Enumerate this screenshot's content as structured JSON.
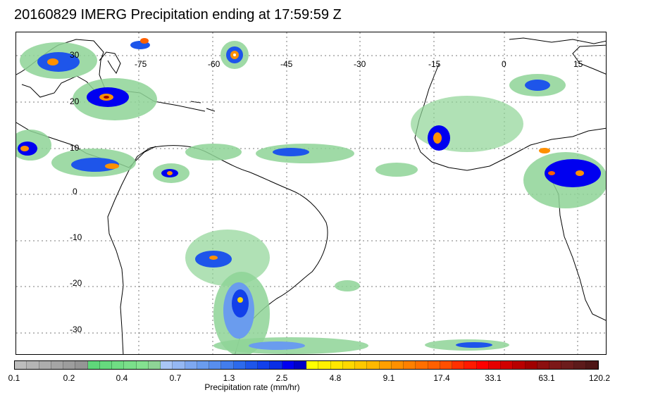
{
  "title": "20160829 IMERG Precipitation ending at 17:59:59 Z",
  "map": {
    "lon_labels": [
      "-75",
      "-60",
      "-45",
      "-30",
      "-15",
      "0",
      "15"
    ],
    "lat_labels": [
      "30",
      "20",
      "10",
      "0",
      "-10",
      "-20",
      "-30"
    ],
    "grid": "dotted"
  },
  "colorbar": {
    "title": "Precipitation rate (mm/hr)",
    "tick_labels": [
      "0.1",
      "0.2",
      "0.4",
      "0.7",
      "1.3",
      "2.5",
      "4.8",
      "9.1",
      "17.4",
      "33.1",
      "63.1",
      "120.2"
    ],
    "colors": [
      "#bdbdbd",
      "#b5b5b5",
      "#adadad",
      "#a5a5a5",
      "#9d9d9d",
      "#959595",
      "#5fd67a",
      "#66da7e",
      "#70dd84",
      "#7adf8a",
      "#84e190",
      "#8ed496",
      "#a9c6f5",
      "#95b8f3",
      "#7ea8f0",
      "#6a9cee",
      "#588eee",
      "#437dec",
      "#2d6aec",
      "#1e55ea",
      "#1240ea",
      "#0a2ee6",
      "#0000f0",
      "#0000c8",
      "#ffff00",
      "#fff000",
      "#ffe600",
      "#ffd800",
      "#ffc800",
      "#ffb800",
      "#ff9f00",
      "#ff9000",
      "#ff8000",
      "#ff6f00",
      "#ff6000",
      "#ff4f00",
      "#ff3000",
      "#ff1a00",
      "#ff0000",
      "#e60000",
      "#d00000",
      "#b80000",
      "#a00000",
      "#8c1010",
      "#7c1818",
      "#6c1c1c",
      "#5c1a1a",
      "#4e1616"
    ]
  }
}
